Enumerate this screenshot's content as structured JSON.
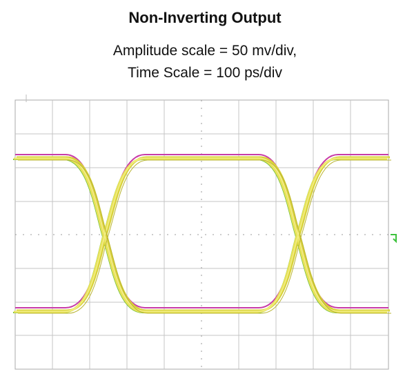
{
  "header": {
    "title": "Non-Inverting Output",
    "subtitle_lines": [
      "Amplitude scale = 50 mv/div,",
      "Time Scale = 100 ps/div"
    ]
  }
}
